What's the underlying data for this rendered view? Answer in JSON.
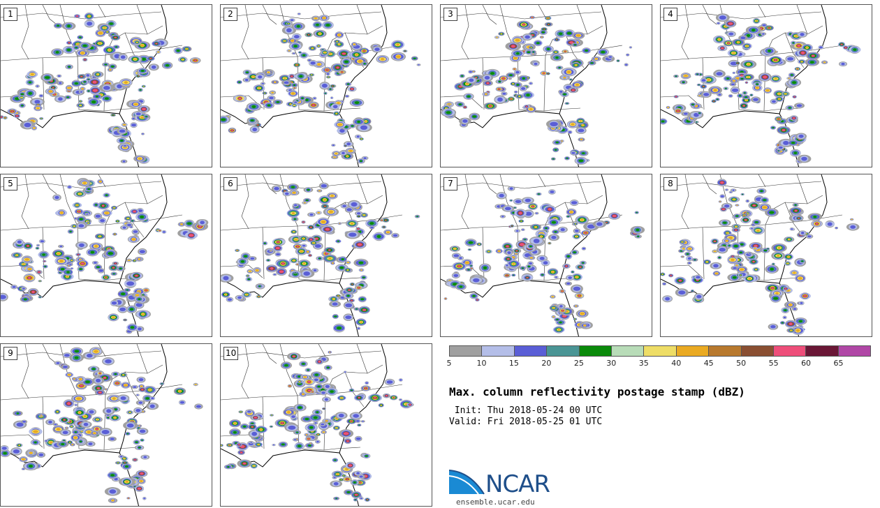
{
  "title": "Max. column reflectivity postage stamp (dBZ)",
  "init_line": " Init: Thu 2018-05-24 00 UTC",
  "valid_line": "Valid: Fri 2018-05-25 01 UTC",
  "site": "ensemble.ucar.edu",
  "logo_text": "NCAR",
  "panels": [
    {
      "label": "1"
    },
    {
      "label": "2"
    },
    {
      "label": "3"
    },
    {
      "label": "4"
    },
    {
      "label": "5"
    },
    {
      "label": "6"
    },
    {
      "label": "7"
    },
    {
      "label": "8"
    },
    {
      "label": "9"
    },
    {
      "label": "10"
    }
  ],
  "colorbar": {
    "colors": [
      "#a0a0a0",
      "#b4bee8",
      "#5a5ed6",
      "#4a9595",
      "#0a8a0a",
      "#b8dcb8",
      "#eedd66",
      "#eaaa22",
      "#b8792e",
      "#8a4f32",
      "#ee4e7a",
      "#6a1736",
      "#b047a6"
    ],
    "ticks": [
      "5",
      "10",
      "15",
      "20",
      "25",
      "30",
      "35",
      "40",
      "45",
      "50",
      "55",
      "60",
      "65"
    ]
  },
  "colors": {
    "map_lines": "#333333",
    "coast": "#000000",
    "logo_blue": "#1f4f8a"
  }
}
